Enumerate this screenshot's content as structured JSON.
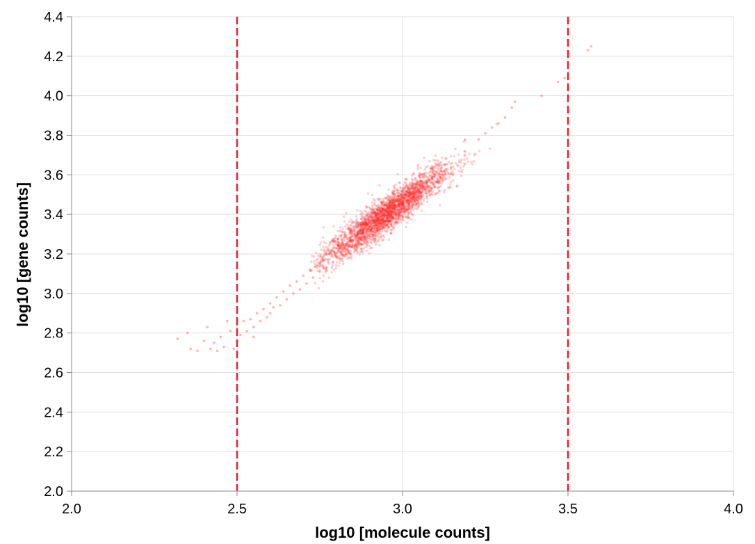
{
  "chart_data": {
    "type": "scatter",
    "xlabel": "log10 [molecule counts]",
    "ylabel": "log10 [gene counts]",
    "xlim": [
      2.0,
      4.0
    ],
    "ylim": [
      2.0,
      4.4
    ],
    "xticks": [
      "2.0",
      "2.5",
      "3.0",
      "3.5",
      "4.0"
    ],
    "yticks": [
      "2.0",
      "2.2",
      "2.4",
      "2.6",
      "2.8",
      "3.0",
      "3.2",
      "3.4",
      "3.6",
      "3.8",
      "4.0",
      "4.2",
      "4.4"
    ],
    "grid": true,
    "point_color": "#ff2a2a",
    "threshold_color": "#e8202a",
    "thresholds_x": [
      2.5,
      3.5
    ],
    "points": [
      [
        2.32,
        2.77
      ],
      [
        2.35,
        2.8
      ],
      [
        2.36,
        2.72
      ],
      [
        2.38,
        2.71
      ],
      [
        2.4,
        2.76
      ],
      [
        2.41,
        2.83
      ],
      [
        2.42,
        2.72
      ],
      [
        2.43,
        2.75
      ],
      [
        2.44,
        2.71
      ],
      [
        2.45,
        2.78
      ],
      [
        2.46,
        2.73
      ],
      [
        2.47,
        2.86
      ],
      [
        2.48,
        2.81
      ],
      [
        2.49,
        2.72
      ],
      [
        2.5,
        2.76
      ],
      [
        2.5,
        2.84
      ],
      [
        2.51,
        2.79
      ],
      [
        2.52,
        2.86
      ],
      [
        2.53,
        2.81
      ],
      [
        2.54,
        2.87
      ],
      [
        2.55,
        2.83
      ],
      [
        2.55,
        2.78
      ],
      [
        2.56,
        2.9
      ],
      [
        2.57,
        2.86
      ],
      [
        2.58,
        2.92
      ],
      [
        2.59,
        2.88
      ],
      [
        2.6,
        2.95
      ],
      [
        2.6,
        2.9
      ],
      [
        2.61,
        2.93
      ],
      [
        2.62,
        2.98
      ],
      [
        2.63,
        2.94
      ],
      [
        2.64,
        3.01
      ],
      [
        2.65,
        2.97
      ],
      [
        2.66,
        3.04
      ],
      [
        2.67,
        3.0
      ],
      [
        2.68,
        3.06
      ],
      [
        2.69,
        3.02
      ],
      [
        2.7,
        3.09
      ],
      [
        2.71,
        3.05
      ],
      [
        2.72,
        3.12
      ],
      [
        2.73,
        3.08
      ],
      [
        2.74,
        3.14
      ],
      [
        2.75,
        3.11
      ],
      [
        2.76,
        3.17
      ],
      [
        2.77,
        3.13
      ],
      [
        2.78,
        3.2
      ],
      [
        2.79,
        3.16
      ],
      [
        2.8,
        3.23
      ],
      [
        3.23,
        3.78
      ],
      [
        3.25,
        3.81
      ],
      [
        3.27,
        3.84
      ],
      [
        3.29,
        3.86
      ],
      [
        3.31,
        3.89
      ],
      [
        3.33,
        3.94
      ],
      [
        3.34,
        3.97
      ],
      [
        3.42,
        4.0
      ],
      [
        3.47,
        4.07
      ],
      [
        3.49,
        4.09
      ],
      [
        3.56,
        4.23
      ],
      [
        3.57,
        4.25
      ]
    ]
  }
}
